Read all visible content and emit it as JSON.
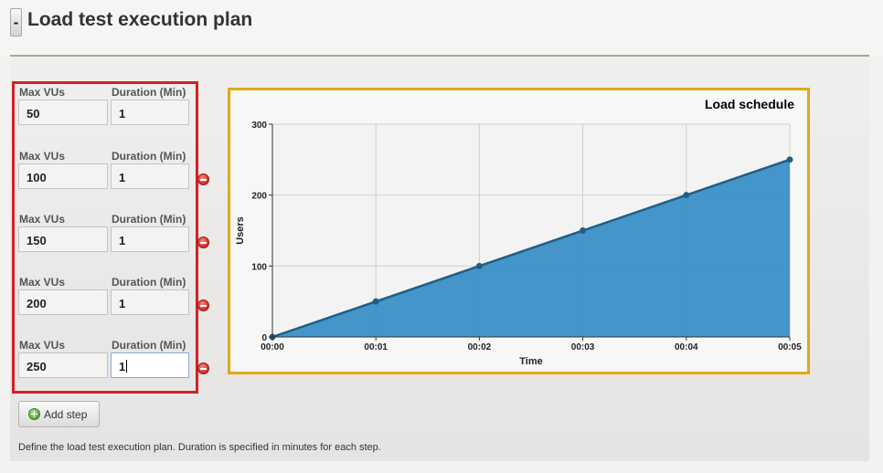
{
  "header": {
    "collapse_label": "-",
    "title": "Load test execution plan"
  },
  "steps": {
    "vus_label": "Max VUs",
    "duration_label": "Duration (Min)",
    "items": [
      {
        "max_vus": "50",
        "duration": "1"
      },
      {
        "max_vus": "100",
        "duration": "1"
      },
      {
        "max_vus": "150",
        "duration": "1"
      },
      {
        "max_vus": "200",
        "duration": "1"
      },
      {
        "max_vus": "250",
        "duration": "1"
      }
    ]
  },
  "actions": {
    "add_step_label": "Add step"
  },
  "help_text": "Define the load test execution plan. Duration is specified in minutes for each step.",
  "colors": {
    "steps_highlight": "#d42027",
    "chart_highlight": "#e0aa12",
    "area_fill": "#3a8fc6",
    "line": "#1f5f86"
  },
  "chart_data": {
    "type": "area",
    "title": "Load schedule",
    "xlabel": "Time",
    "ylabel": "Users",
    "x": [
      "00:00",
      "00:01",
      "00:02",
      "00:03",
      "00:04",
      "00:05"
    ],
    "series": [
      {
        "values": [
          0,
          50,
          100,
          150,
          200,
          250
        ]
      }
    ],
    "yticks": [
      0,
      100,
      200,
      300
    ],
    "ylim": [
      0,
      300
    ],
    "grid": true
  }
}
